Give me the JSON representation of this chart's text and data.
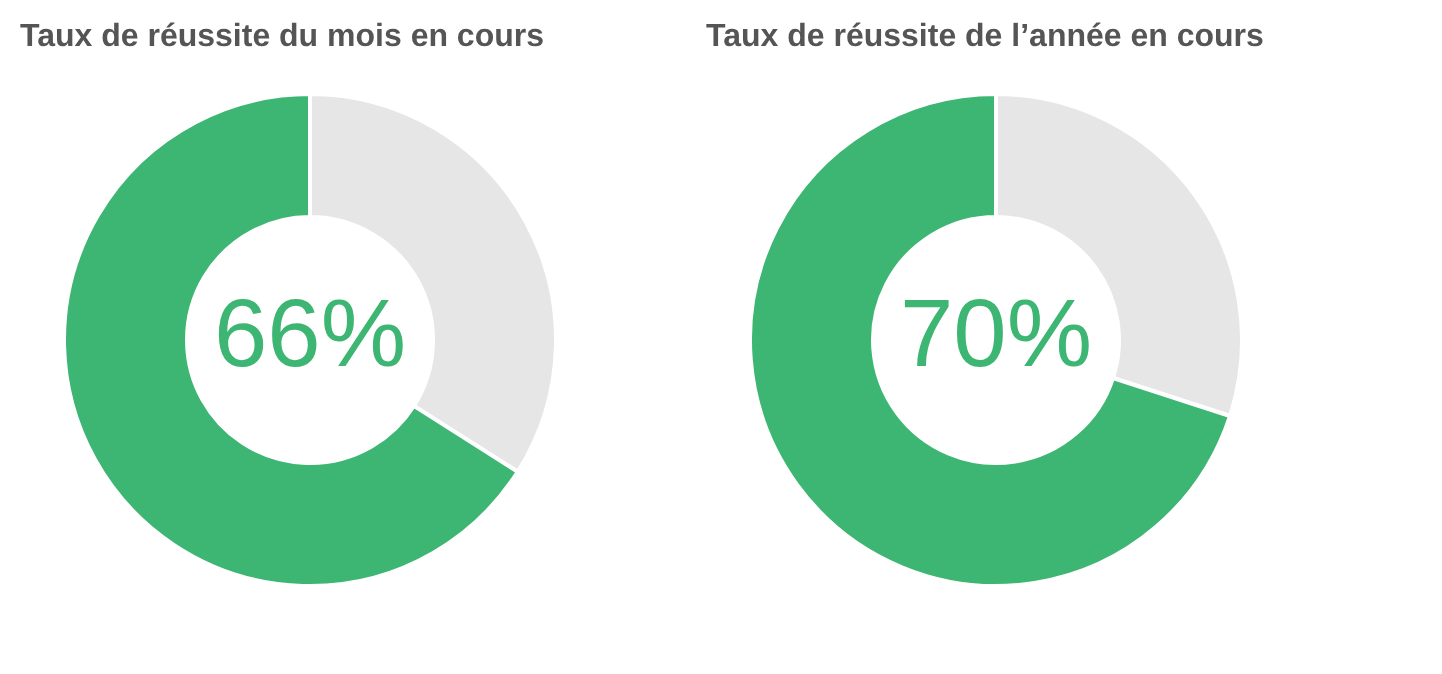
{
  "chart_data": [
    {
      "type": "donut",
      "title": "Taux de réussite du mois en cours",
      "categories": [
        null,
        null
      ],
      "values": [
        34,
        66
      ],
      "colors": [
        "#e6e6e6",
        "#3db573"
      ],
      "annotations": [
        "66%"
      ],
      "legend": false
    },
    {
      "type": "donut",
      "title": "Taux de réussite de l’année en cours",
      "categories": [
        null,
        null
      ],
      "values": [
        30,
        70
      ],
      "colors": [
        "#e6e6e6",
        "#3db573"
      ],
      "annotations": [
        "70%"
      ],
      "legend": false
    }
  ]
}
